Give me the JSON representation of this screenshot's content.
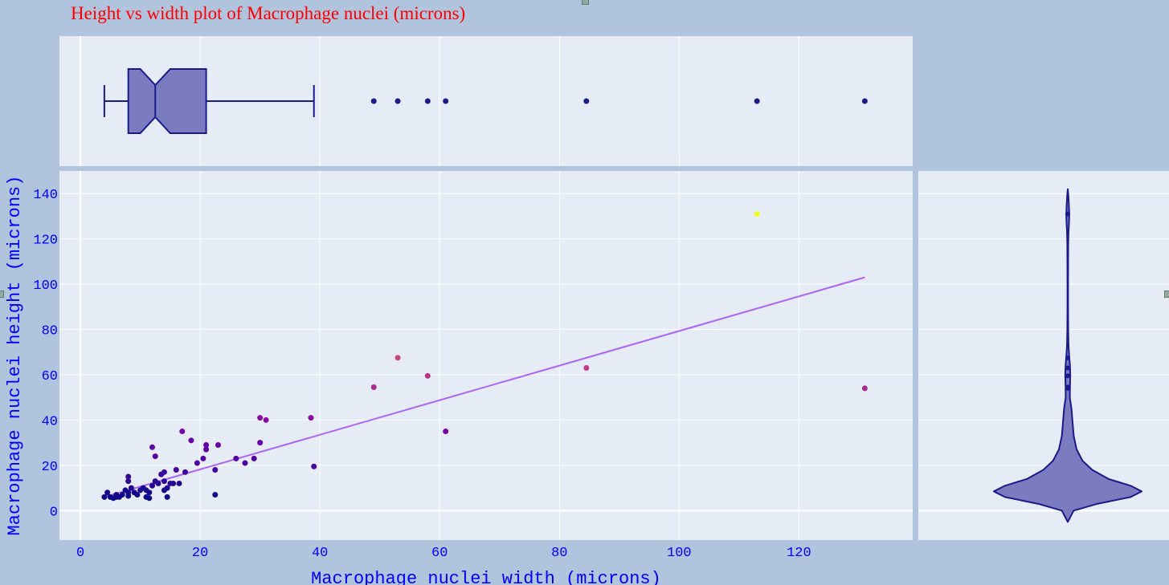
{
  "title": "Height vs width plot of Macrophage nuclei (microns)",
  "colors": {
    "background": "#b0c4de",
    "plot_bg": "#e5ecf6",
    "grid": "#ffffff",
    "title": "#ff0000",
    "axis_text": "#0000ff",
    "box_fill": "#7b7bc0",
    "box_line": "#1a1a8c",
    "trend_line": "#ab63fa",
    "colorscale": [
      "#0d0887",
      "#46039f",
      "#7201a8",
      "#9c179e",
      "#bd3786",
      "#d8576b",
      "#ed7953",
      "#fb9f3a",
      "#fdca26",
      "#f0f921"
    ]
  },
  "chart_data": {
    "type": "scatter",
    "title": "Height vs width plot of Macrophage nuclei (microns)",
    "xlabel": "Macrophage nuclei width (microns)",
    "ylabel": "Macrophage nuclei height (microns)",
    "xlim": [
      -3.5,
      139
    ],
    "ylim": [
      -13,
      150
    ],
    "xticks": [
      0,
      20,
      40,
      60,
      80,
      100,
      120
    ],
    "yticks": [
      0,
      20,
      40,
      60,
      80,
      100,
      120,
      140
    ],
    "grid": true,
    "points": [
      {
        "x": 4,
        "y": 6
      },
      {
        "x": 4.5,
        "y": 8
      },
      {
        "x": 5,
        "y": 6
      },
      {
        "x": 5.5,
        "y": 5.5
      },
      {
        "x": 6,
        "y": 7
      },
      {
        "x": 6,
        "y": 6
      },
      {
        "x": 6.5,
        "y": 6
      },
      {
        "x": 7,
        "y": 7
      },
      {
        "x": 7.5,
        "y": 9
      },
      {
        "x": 8,
        "y": 8
      },
      {
        "x": 8,
        "y": 13
      },
      {
        "x": 8,
        "y": 15
      },
      {
        "x": 8,
        "y": 6.5
      },
      {
        "x": 8.5,
        "y": 10
      },
      {
        "x": 9,
        "y": 8
      },
      {
        "x": 9.5,
        "y": 7
      },
      {
        "x": 10,
        "y": 9
      },
      {
        "x": 10.5,
        "y": 10
      },
      {
        "x": 11,
        "y": 6
      },
      {
        "x": 11,
        "y": 9
      },
      {
        "x": 11.5,
        "y": 8
      },
      {
        "x": 11.5,
        "y": 5.5
      },
      {
        "x": 12,
        "y": 28
      },
      {
        "x": 12,
        "y": 11
      },
      {
        "x": 12.5,
        "y": 24
      },
      {
        "x": 12.5,
        "y": 13
      },
      {
        "x": 13,
        "y": 12
      },
      {
        "x": 13.5,
        "y": 16
      },
      {
        "x": 14,
        "y": 17
      },
      {
        "x": 14,
        "y": 9
      },
      {
        "x": 14,
        "y": 13
      },
      {
        "x": 14.5,
        "y": 10
      },
      {
        "x": 14.5,
        "y": 6
      },
      {
        "x": 15,
        "y": 12
      },
      {
        "x": 15.5,
        "y": 12
      },
      {
        "x": 16,
        "y": 18
      },
      {
        "x": 16.5,
        "y": 12
      },
      {
        "x": 17,
        "y": 35
      },
      {
        "x": 17.5,
        "y": 17
      },
      {
        "x": 18.5,
        "y": 31
      },
      {
        "x": 19.5,
        "y": 21
      },
      {
        "x": 20.5,
        "y": 23
      },
      {
        "x": 21,
        "y": 29
      },
      {
        "x": 21,
        "y": 27
      },
      {
        "x": 22.5,
        "y": 7
      },
      {
        "x": 22.5,
        "y": 18
      },
      {
        "x": 23,
        "y": 29
      },
      {
        "x": 26,
        "y": 23
      },
      {
        "x": 27.5,
        "y": 21
      },
      {
        "x": 29,
        "y": 23
      },
      {
        "x": 30,
        "y": 41
      },
      {
        "x": 30,
        "y": 30
      },
      {
        "x": 31,
        "y": 40
      },
      {
        "x": 38.5,
        "y": 41
      },
      {
        "x": 39,
        "y": 19.5
      },
      {
        "x": 49,
        "y": 54.5
      },
      {
        "x": 53,
        "y": 67.5
      },
      {
        "x": 58,
        "y": 59.5
      },
      {
        "x": 61,
        "y": 35
      },
      {
        "x": 84.5,
        "y": 63
      },
      {
        "x": 113,
        "y": 131
      },
      {
        "x": 131,
        "y": 54
      }
    ],
    "trend_line": {
      "x": [
        4,
        131
      ],
      "y": [
        6,
        103
      ]
    },
    "marginal_x_box": {
      "whisker_low": 4,
      "q1": 8,
      "median": 12.5,
      "q3": 21,
      "whisker_high": 39,
      "notch_low": 10,
      "notch_high": 15,
      "outliers": [
        49,
        53,
        58,
        61,
        84.5,
        113,
        131
      ]
    },
    "marginal_y_violin": {
      "range": [
        -5,
        142
      ],
      "profile": [
        [
          -5,
          0
        ],
        [
          0,
          0.08
        ],
        [
          3,
          0.4
        ],
        [
          6,
          0.85
        ],
        [
          8.5,
          1.0
        ],
        [
          11,
          0.85
        ],
        [
          14,
          0.55
        ],
        [
          18,
          0.33
        ],
        [
          22,
          0.2
        ],
        [
          27,
          0.12
        ],
        [
          33,
          0.08
        ],
        [
          39,
          0.065
        ],
        [
          45,
          0.05
        ],
        [
          50,
          0.028
        ],
        [
          55,
          0.03
        ],
        [
          60,
          0.034
        ],
        [
          64,
          0.03
        ],
        [
          68,
          0.02
        ],
        [
          73,
          0.01
        ],
        [
          80,
          0.006
        ],
        [
          90,
          0.004
        ],
        [
          100,
          0.004
        ],
        [
          110,
          0.005
        ],
        [
          118,
          0.006
        ],
        [
          123,
          0.01
        ],
        [
          128,
          0.018
        ],
        [
          131,
          0.02
        ],
        [
          135,
          0.015
        ],
        [
          139,
          0.008
        ],
        [
          142,
          0
        ]
      ],
      "points": [
        54,
        54.5,
        59.5,
        63,
        67.5,
        131
      ]
    }
  }
}
